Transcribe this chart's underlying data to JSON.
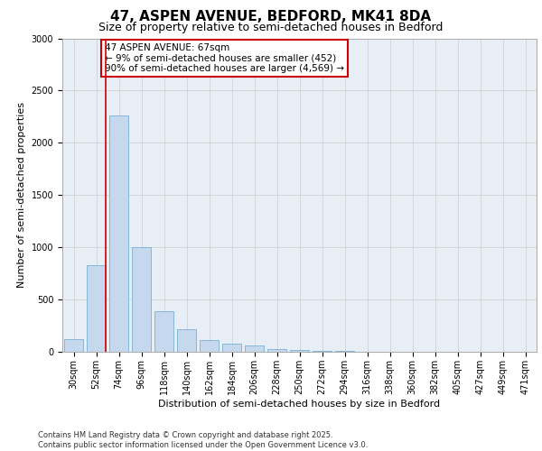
{
  "title_line1": "47, ASPEN AVENUE, BEDFORD, MK41 8DA",
  "title_line2": "Size of property relative to semi-detached houses in Bedford",
  "xlabel": "Distribution of semi-detached houses by size in Bedford",
  "ylabel": "Number of semi-detached properties",
  "categories": [
    "30sqm",
    "52sqm",
    "74sqm",
    "96sqm",
    "118sqm",
    "140sqm",
    "162sqm",
    "184sqm",
    "206sqm",
    "228sqm",
    "250sqm",
    "272sqm",
    "294sqm",
    "316sqm",
    "338sqm",
    "360sqm",
    "382sqm",
    "405sqm",
    "427sqm",
    "449sqm",
    "471sqm"
  ],
  "values": [
    120,
    830,
    2260,
    1000,
    390,
    220,
    110,
    80,
    60,
    30,
    20,
    10,
    5,
    3,
    2,
    2,
    1,
    1,
    0,
    0,
    0
  ],
  "bar_color": "#c5d8ed",
  "bar_edge_color": "#7bafd4",
  "red_line_color": "#cc0000",
  "red_line_x": 1.43,
  "annotation_text": "47 ASPEN AVENUE: 67sqm\n← 9% of semi-detached houses are smaller (452)\n90% of semi-detached houses are larger (4,569) →",
  "annotation_box_color": "#ffffff",
  "annotation_box_edge_color": "#cc0000",
  "ylim": [
    0,
    3000
  ],
  "yticks": [
    0,
    500,
    1000,
    1500,
    2000,
    2500,
    3000
  ],
  "grid_color": "#cccccc",
  "bg_color": "#e8eef5",
  "footnote": "Contains HM Land Registry data © Crown copyright and database right 2025.\nContains public sector information licensed under the Open Government Licence v3.0.",
  "title_fontsize": 11,
  "subtitle_fontsize": 9,
  "axis_label_fontsize": 8,
  "tick_fontsize": 7,
  "annotation_fontsize": 7.5,
  "footnote_fontsize": 6,
  "ylabel_fontsize": 8
}
